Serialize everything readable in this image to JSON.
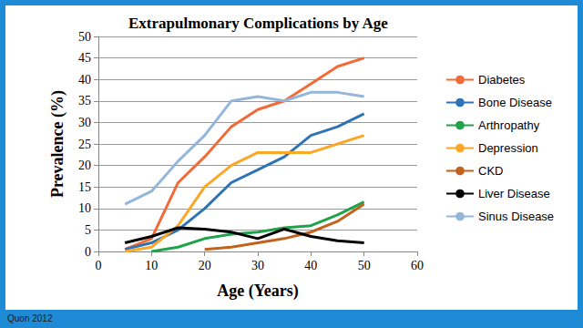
{
  "chart_data": {
    "type": "line",
    "title": "Extrapulmonary Complications by Age",
    "x_label": "Age (Years)",
    "y_label": "Prevalence (%)",
    "annotations": [
      "Quon 2012"
    ],
    "x": [
      5,
      10,
      15,
      20,
      25,
      30,
      35,
      40,
      45,
      50
    ],
    "series": [
      {
        "name": "Diabetes",
        "color": "#f26a35",
        "values": [
          0.5,
          3,
          16,
          22,
          29,
          33,
          35,
          39,
          43,
          45
        ]
      },
      {
        "name": "Bone Disease",
        "color": "#2e74b5",
        "values": [
          0.5,
          2,
          5,
          10,
          16,
          19,
          22,
          27,
          29,
          32
        ]
      },
      {
        "name": "Arthropathy",
        "color": "#1fa34a",
        "values": [
          null,
          0,
          1,
          3,
          4,
          4.5,
          5.5,
          6,
          8.5,
          11.5
        ]
      },
      {
        "name": "Depression",
        "color": "#fba829",
        "values": [
          0,
          1,
          6,
          15,
          20,
          23,
          23,
          23,
          25,
          27
        ]
      },
      {
        "name": "CKD",
        "color": "#c2621c",
        "values": [
          null,
          null,
          null,
          0.5,
          1,
          2,
          3,
          4.5,
          7,
          11
        ]
      },
      {
        "name": "Liver Disease",
        "color": "#000000",
        "values": [
          2,
          3.5,
          5.5,
          5.2,
          4.5,
          3,
          5.2,
          3.5,
          2.5,
          2
        ]
      },
      {
        "name": "Sinus Disease",
        "color": "#93b6da",
        "values": [
          11,
          14,
          21,
          27,
          35,
          36,
          35,
          37,
          37,
          36
        ]
      }
    ],
    "xlim": [
      0,
      60
    ],
    "xticks": [
      0,
      10,
      20,
      30,
      40,
      50,
      60
    ],
    "ylim": [
      0,
      50
    ],
    "yticks": [
      0,
      5,
      10,
      15,
      20,
      25,
      30,
      35,
      40,
      45,
      50
    ],
    "grid": true,
    "legend": "right",
    "marker": "none",
    "line_style": "solid"
  }
}
